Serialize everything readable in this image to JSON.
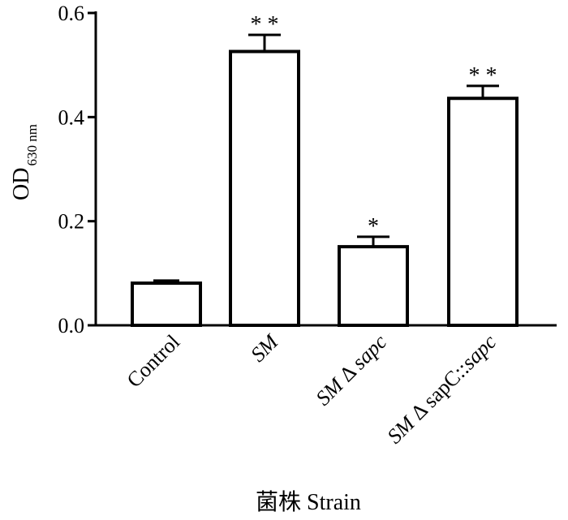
{
  "chart_data": {
    "type": "bar",
    "title": "",
    "xlabel": "菌株  Strain",
    "ylabel": {
      "main": "OD",
      "subscript": "630 nm"
    },
    "ylim": [
      0,
      0.6
    ],
    "yticks": [
      "0.0",
      "0.2",
      "0.4",
      "0.6"
    ],
    "grid": false,
    "categories": [
      [
        {
          "text": "Control",
          "italic": false
        }
      ],
      [
        {
          "text": "SM",
          "italic": true
        }
      ],
      [
        {
          "text": "SM",
          "italic": true
        },
        {
          "text": " Δ ",
          "italic": false
        },
        {
          "text": "sapc",
          "italic": true
        }
      ],
      [
        {
          "text": "SM",
          "italic": true
        },
        {
          "text": " Δ sapC::",
          "italic": false
        },
        {
          "text": "sapc",
          "italic": true
        }
      ]
    ],
    "category_labels": [
      "Control",
      "SM",
      "SM Δ sapc",
      "SM Δ sapC::sapc"
    ],
    "values": [
      0.081,
      0.526,
      0.151,
      0.436
    ],
    "errors": [
      0.005,
      0.032,
      0.019,
      0.024
    ],
    "significance": [
      "",
      "* *",
      "*",
      "* *"
    ],
    "bar_fill": "#ffffff",
    "bar_stroke": "#000000"
  }
}
